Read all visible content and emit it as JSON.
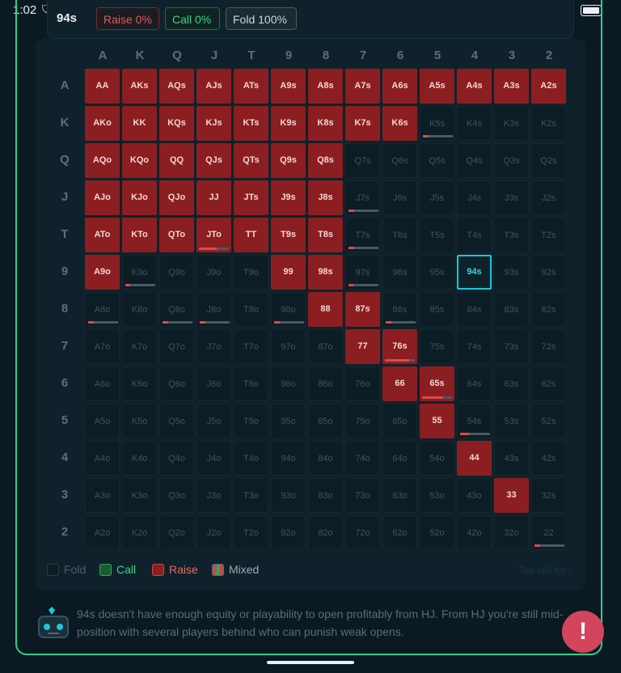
{
  "status": {
    "time": "1:02"
  },
  "header": {
    "hand": "94s",
    "raise": "Raise 0%",
    "call": "Call 0%",
    "fold": "Fold 100%"
  },
  "ranks": [
    "A",
    "K",
    "Q",
    "J",
    "T",
    "9",
    "8",
    "7",
    "6",
    "5",
    "4",
    "3",
    "2"
  ],
  "grid": [
    [
      {
        "h": "AA",
        "a": "raise"
      },
      {
        "h": "AKs",
        "a": "raise"
      },
      {
        "h": "AQs",
        "a": "raise"
      },
      {
        "h": "AJs",
        "a": "raise"
      },
      {
        "h": "ATs",
        "a": "raise"
      },
      {
        "h": "A9s",
        "a": "raise"
      },
      {
        "h": "A8s",
        "a": "raise"
      },
      {
        "h": "A7s",
        "a": "raise"
      },
      {
        "h": "A6s",
        "a": "raise"
      },
      {
        "h": "A5s",
        "a": "raise"
      },
      {
        "h": "A4s",
        "a": "raise"
      },
      {
        "h": "A3s",
        "a": "raise"
      },
      {
        "h": "A2s",
        "a": "raise"
      }
    ],
    [
      {
        "h": "AKo",
        "a": "raise"
      },
      {
        "h": "KK",
        "a": "raise"
      },
      {
        "h": "KQs",
        "a": "raise"
      },
      {
        "h": "KJs",
        "a": "raise"
      },
      {
        "h": "KTs",
        "a": "raise"
      },
      {
        "h": "K9s",
        "a": "raise"
      },
      {
        "h": "K8s",
        "a": "raise"
      },
      {
        "h": "K7s",
        "a": "raise"
      },
      {
        "h": "K6s",
        "a": "raise"
      },
      {
        "h": "K5s",
        "a": "fold",
        "mix": 0.2
      },
      {
        "h": "K4s",
        "a": "fold"
      },
      {
        "h": "K3s",
        "a": "fold"
      },
      {
        "h": "K2s",
        "a": "fold"
      }
    ],
    [
      {
        "h": "AQo",
        "a": "raise"
      },
      {
        "h": "KQo",
        "a": "raise"
      },
      {
        "h": "QQ",
        "a": "raise"
      },
      {
        "h": "QJs",
        "a": "raise"
      },
      {
        "h": "QTs",
        "a": "raise"
      },
      {
        "h": "Q9s",
        "a": "raise"
      },
      {
        "h": "Q8s",
        "a": "raise"
      },
      {
        "h": "Q7s",
        "a": "fold"
      },
      {
        "h": "Q6s",
        "a": "fold"
      },
      {
        "h": "Q5s",
        "a": "fold"
      },
      {
        "h": "Q4s",
        "a": "fold"
      },
      {
        "h": "Q3s",
        "a": "fold"
      },
      {
        "h": "Q2s",
        "a": "fold"
      }
    ],
    [
      {
        "h": "AJo",
        "a": "raise"
      },
      {
        "h": "KJo",
        "a": "raise"
      },
      {
        "h": "QJo",
        "a": "raise"
      },
      {
        "h": "JJ",
        "a": "raise"
      },
      {
        "h": "JTs",
        "a": "raise"
      },
      {
        "h": "J9s",
        "a": "raise"
      },
      {
        "h": "J8s",
        "a": "raise"
      },
      {
        "h": "J7s",
        "a": "fold",
        "mix": 0.2
      },
      {
        "h": "J6s",
        "a": "fold"
      },
      {
        "h": "J5s",
        "a": "fold"
      },
      {
        "h": "J4s",
        "a": "fold"
      },
      {
        "h": "J3s",
        "a": "fold"
      },
      {
        "h": "J2s",
        "a": "fold"
      }
    ],
    [
      {
        "h": "ATo",
        "a": "raise"
      },
      {
        "h": "KTo",
        "a": "raise"
      },
      {
        "h": "QTo",
        "a": "raise"
      },
      {
        "h": "JTo",
        "a": "raise",
        "mix": 0.6
      },
      {
        "h": "TT",
        "a": "raise"
      },
      {
        "h": "T9s",
        "a": "raise"
      },
      {
        "h": "T8s",
        "a": "raise"
      },
      {
        "h": "T7s",
        "a": "fold",
        "mix": 0.2
      },
      {
        "h": "T6s",
        "a": "fold"
      },
      {
        "h": "T5s",
        "a": "fold"
      },
      {
        "h": "T4s",
        "a": "fold"
      },
      {
        "h": "T3s",
        "a": "fold"
      },
      {
        "h": "T2s",
        "a": "fold"
      }
    ],
    [
      {
        "h": "A9o",
        "a": "raise"
      },
      {
        "h": "K9o",
        "a": "fold",
        "mix": 0.15
      },
      {
        "h": "Q9o",
        "a": "fold"
      },
      {
        "h": "J9o",
        "a": "fold"
      },
      {
        "h": "T9o",
        "a": "fold"
      },
      {
        "h": "99",
        "a": "raise"
      },
      {
        "h": "98s",
        "a": "raise"
      },
      {
        "h": "97s",
        "a": "fold",
        "mix": 0.15
      },
      {
        "h": "96s",
        "a": "fold"
      },
      {
        "h": "95s",
        "a": "fold"
      },
      {
        "h": "94s",
        "a": "hero"
      },
      {
        "h": "93s",
        "a": "fold"
      },
      {
        "h": "92s",
        "a": "fold"
      }
    ],
    [
      {
        "h": "A8o",
        "a": "fold",
        "mix": 0.2
      },
      {
        "h": "K8o",
        "a": "fold"
      },
      {
        "h": "Q8o",
        "a": "fold",
        "mix": 0.2
      },
      {
        "h": "J8o",
        "a": "fold",
        "mix": 0.2
      },
      {
        "h": "T8o",
        "a": "fold"
      },
      {
        "h": "98o",
        "a": "fold",
        "mix": 0.2
      },
      {
        "h": "88",
        "a": "raise"
      },
      {
        "h": "87s",
        "a": "raise"
      },
      {
        "h": "86s",
        "a": "fold",
        "mix": 0.2
      },
      {
        "h": "85s",
        "a": "fold"
      },
      {
        "h": "84s",
        "a": "fold"
      },
      {
        "h": "83s",
        "a": "fold"
      },
      {
        "h": "82s",
        "a": "fold"
      }
    ],
    [
      {
        "h": "A7o",
        "a": "fold"
      },
      {
        "h": "K7o",
        "a": "fold"
      },
      {
        "h": "Q7o",
        "a": "fold"
      },
      {
        "h": "J7o",
        "a": "fold"
      },
      {
        "h": "T7o",
        "a": "fold"
      },
      {
        "h": "97o",
        "a": "fold"
      },
      {
        "h": "87o",
        "a": "fold"
      },
      {
        "h": "77",
        "a": "raise"
      },
      {
        "h": "76s",
        "a": "raise",
        "mix": 0.8
      },
      {
        "h": "75s",
        "a": "fold"
      },
      {
        "h": "74s",
        "a": "fold"
      },
      {
        "h": "73s",
        "a": "fold"
      },
      {
        "h": "72s",
        "a": "fold"
      }
    ],
    [
      {
        "h": "A6o",
        "a": "fold"
      },
      {
        "h": "K6o",
        "a": "fold"
      },
      {
        "h": "Q6o",
        "a": "fold"
      },
      {
        "h": "J6o",
        "a": "fold"
      },
      {
        "h": "T6o",
        "a": "fold"
      },
      {
        "h": "96o",
        "a": "fold"
      },
      {
        "h": "86o",
        "a": "fold"
      },
      {
        "h": "76o",
        "a": "fold"
      },
      {
        "h": "66",
        "a": "raise"
      },
      {
        "h": "65s",
        "a": "raise",
        "mix": 0.7
      },
      {
        "h": "64s",
        "a": "fold"
      },
      {
        "h": "63s",
        "a": "fold"
      },
      {
        "h": "62s",
        "a": "fold"
      }
    ],
    [
      {
        "h": "A5o",
        "a": "fold"
      },
      {
        "h": "K5o",
        "a": "fold"
      },
      {
        "h": "Q5o",
        "a": "fold"
      },
      {
        "h": "J5o",
        "a": "fold"
      },
      {
        "h": "T5o",
        "a": "fold"
      },
      {
        "h": "95o",
        "a": "fold"
      },
      {
        "h": "85o",
        "a": "fold"
      },
      {
        "h": "75o",
        "a": "fold"
      },
      {
        "h": "65o",
        "a": "fold"
      },
      {
        "h": "55",
        "a": "raise"
      },
      {
        "h": "54s",
        "a": "fold",
        "mix": 0.3
      },
      {
        "h": "53s",
        "a": "fold"
      },
      {
        "h": "52s",
        "a": "fold"
      }
    ],
    [
      {
        "h": "A4o",
        "a": "fold"
      },
      {
        "h": "K4o",
        "a": "fold"
      },
      {
        "h": "Q4o",
        "a": "fold"
      },
      {
        "h": "J4o",
        "a": "fold"
      },
      {
        "h": "T4o",
        "a": "fold"
      },
      {
        "h": "94o",
        "a": "fold"
      },
      {
        "h": "84o",
        "a": "fold"
      },
      {
        "h": "74o",
        "a": "fold"
      },
      {
        "h": "64o",
        "a": "fold"
      },
      {
        "h": "54o",
        "a": "fold"
      },
      {
        "h": "44",
        "a": "raise"
      },
      {
        "h": "43s",
        "a": "fold"
      },
      {
        "h": "42s",
        "a": "fold"
      }
    ],
    [
      {
        "h": "A3o",
        "a": "fold"
      },
      {
        "h": "K3o",
        "a": "fold"
      },
      {
        "h": "Q3o",
        "a": "fold"
      },
      {
        "h": "J3o",
        "a": "fold"
      },
      {
        "h": "T3o",
        "a": "fold"
      },
      {
        "h": "93o",
        "a": "fold"
      },
      {
        "h": "83o",
        "a": "fold"
      },
      {
        "h": "73o",
        "a": "fold"
      },
      {
        "h": "63o",
        "a": "fold"
      },
      {
        "h": "53o",
        "a": "fold"
      },
      {
        "h": "43o",
        "a": "fold"
      },
      {
        "h": "33",
        "a": "raise"
      },
      {
        "h": "32s",
        "a": "fold"
      }
    ],
    [
      {
        "h": "A2o",
        "a": "fold"
      },
      {
        "h": "K2o",
        "a": "fold"
      },
      {
        "h": "Q2o",
        "a": "fold"
      },
      {
        "h": "J2o",
        "a": "fold"
      },
      {
        "h": "T2o",
        "a": "fold"
      },
      {
        "h": "92o",
        "a": "fold"
      },
      {
        "h": "82o",
        "a": "fold"
      },
      {
        "h": "72o",
        "a": "fold"
      },
      {
        "h": "62o",
        "a": "fold"
      },
      {
        "h": "52o",
        "a": "fold"
      },
      {
        "h": "42o",
        "a": "fold"
      },
      {
        "h": "32o",
        "a": "fold"
      },
      {
        "h": "22",
        "a": "fold",
        "mix": 0.2
      }
    ]
  ],
  "legend": {
    "fold": "Fold",
    "call": "Call",
    "raise": "Raise",
    "mixed": "Mixed",
    "tap_hint": "Tap cell for i"
  },
  "assistant": {
    "text": "94s doesn't have enough equity or playability to open profitably from HJ. From HJ you're still mid-position with several players behind who can punish weak opens."
  },
  "fab": "!",
  "colors": {
    "raise": "#8b1e21",
    "call": "#1d6e45",
    "fold_cell": "#0d1d25",
    "hero": "#1fc6d8",
    "accent": "#2ecf86",
    "fab": "#d2455d"
  }
}
